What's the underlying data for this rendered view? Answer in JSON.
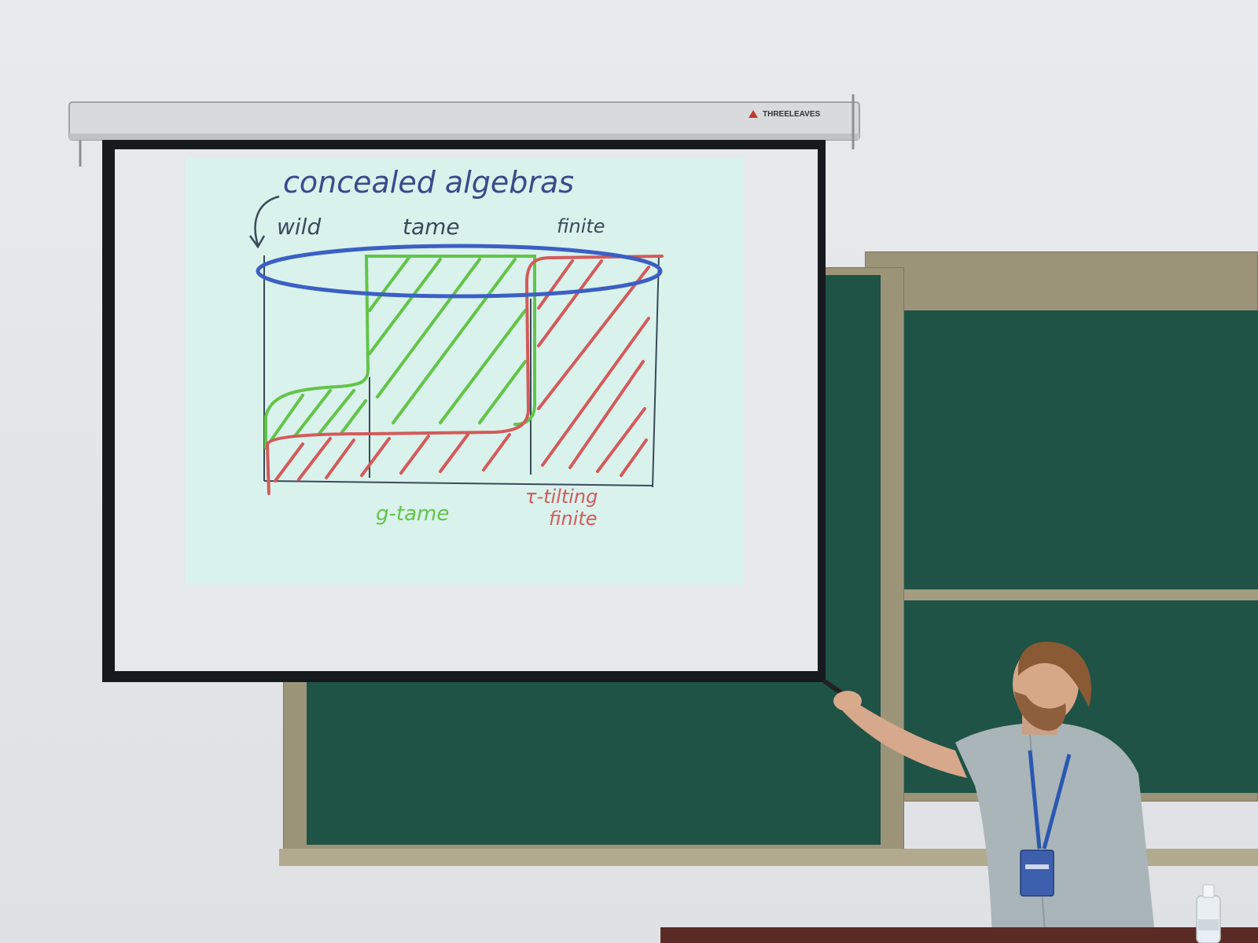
{
  "scene": {
    "projector_brand": "THREELEAVES",
    "slide": {
      "title": "concealed algebras",
      "top_labels": [
        "wild",
        "tame",
        "finite"
      ],
      "bottom_labels": {
        "green": "g-tame",
        "red_line1": "τ-tilting",
        "red_line2": "finite"
      }
    }
  },
  "colors": {
    "wall": "#e4e6e9",
    "chalkboard": "#1f5346",
    "board_frame": "#9b9479",
    "screen": "#e6e8ea",
    "slide_bg": "#d9f2ec",
    "ink_blue": "#3b5fc4",
    "ink_green": "#63c447",
    "ink_red": "#d45a5a",
    "ink_dark": "#3a4a5a"
  }
}
